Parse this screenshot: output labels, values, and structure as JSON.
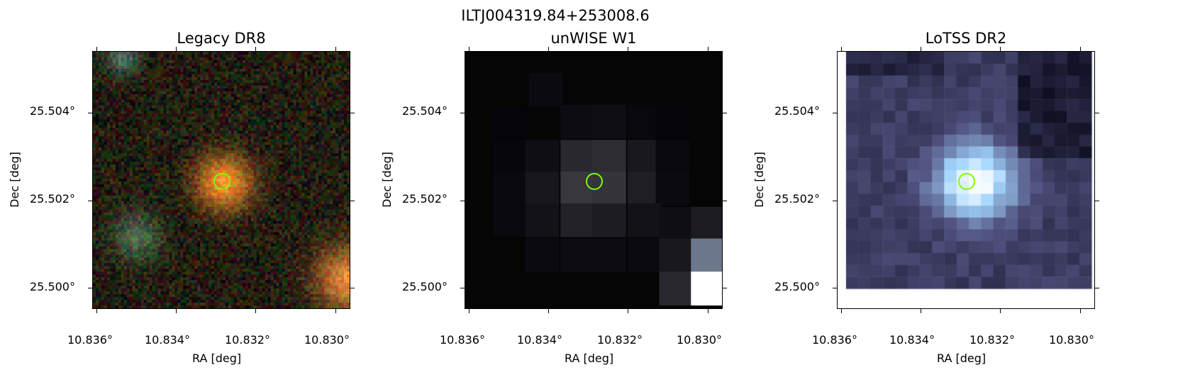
{
  "figure": {
    "title": "ILTJ004319.84+253008.6"
  },
  "panels": [
    {
      "title": "Legacy DR8",
      "xlabel": "RA [deg]",
      "ylabel": "Dec [deg]",
      "xticks": [
        "10.836°",
        "10.834°",
        "10.832°",
        "10.830°"
      ],
      "yticks": [
        "25.504°",
        "25.502°",
        "25.500°"
      ],
      "style": "optical-rgb"
    },
    {
      "title": "unWISE W1",
      "xlabel": "RA [deg]",
      "ylabel": "Dec [deg]",
      "xticks": [
        "10.836°",
        "10.834°",
        "10.832°",
        "10.830°"
      ],
      "yticks": [
        "25.504°",
        "25.502°",
        "25.500°"
      ],
      "style": "infrared-gray"
    },
    {
      "title": "LoTSS DR2",
      "xlabel": "RA [deg]",
      "ylabel": "Dec [deg]",
      "xticks": [
        "10.836°",
        "10.834°",
        "10.832°",
        "10.830°"
      ],
      "yticks": [
        "25.504°",
        "25.502°",
        "25.500°"
      ],
      "style": "radio-bone"
    }
  ],
  "marker": {
    "color": "#7cfc00",
    "shape": "circle"
  }
}
